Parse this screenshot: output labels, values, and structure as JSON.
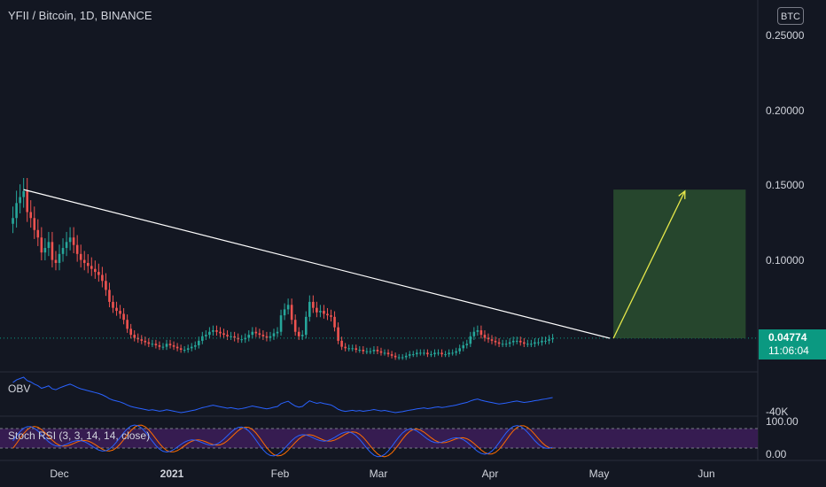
{
  "header": {
    "title": "YFII / Bitcoin, 1D, BINANCE",
    "currency_badge": "BTC"
  },
  "price_axis": {
    "ticks": [
      "0.25000",
      "0.20000",
      "0.15000",
      "0.10000"
    ]
  },
  "current": {
    "price": "0.04774",
    "countdown": "11:06:04"
  },
  "time_axis": {
    "ticks": [
      "Dec",
      "2021",
      "Feb",
      "Mar",
      "Apr",
      "May",
      "Jun"
    ]
  },
  "obv": {
    "label": "OBV",
    "axis_value": "-40K"
  },
  "stoch": {
    "label": "Stoch RSI (3, 3, 14, 14, close)",
    "axis_top": "100.00",
    "axis_bottom": "0.00"
  },
  "colors": {
    "up": "#26a69a",
    "down": "#ef5350",
    "bg": "#131722",
    "trendline": "#ffffff",
    "projection_box": "#2a4f2f",
    "projection_arrow": "#e6e84b",
    "obv_line": "#2962ff",
    "stoch_k": "#2962ff",
    "stoch_d": "#ff6d00",
    "stoch_band": "#3b1d57"
  },
  "chart_data": {
    "type": "candlestick",
    "title": "YFII / Bitcoin, 1D, BINANCE",
    "y_scale": "linear",
    "ylim": [
      0.022,
      0.265
    ],
    "x_range": [
      "2020-11-18",
      "2021-06-11"
    ],
    "close_series": [
      0.128,
      0.138,
      0.142,
      0.146,
      0.132,
      0.128,
      0.12,
      0.115,
      0.105,
      0.108,
      0.112,
      0.1,
      0.098,
      0.104,
      0.108,
      0.112,
      0.115,
      0.11,
      0.104,
      0.1,
      0.098,
      0.096,
      0.094,
      0.092,
      0.09,
      0.086,
      0.08,
      0.072,
      0.068,
      0.066,
      0.064,
      0.06,
      0.054,
      0.05,
      0.048,
      0.047,
      0.046,
      0.045,
      0.044,
      0.044,
      0.043,
      0.042,
      0.042,
      0.044,
      0.043,
      0.042,
      0.041,
      0.04,
      0.04,
      0.041,
      0.042,
      0.043,
      0.046,
      0.049,
      0.05,
      0.052,
      0.053,
      0.052,
      0.051,
      0.05,
      0.049,
      0.049,
      0.048,
      0.047,
      0.047,
      0.048,
      0.05,
      0.052,
      0.051,
      0.05,
      0.049,
      0.048,
      0.049,
      0.051,
      0.052,
      0.063,
      0.067,
      0.07,
      0.06,
      0.052,
      0.049,
      0.05,
      0.062,
      0.072,
      0.068,
      0.065,
      0.066,
      0.064,
      0.063,
      0.062,
      0.055,
      0.046,
      0.042,
      0.041,
      0.041,
      0.041,
      0.04,
      0.04,
      0.039,
      0.039,
      0.039,
      0.04,
      0.039,
      0.038,
      0.038,
      0.037,
      0.036,
      0.035,
      0.035,
      0.035,
      0.036,
      0.037,
      0.037,
      0.038,
      0.038,
      0.038,
      0.037,
      0.037,
      0.038,
      0.038,
      0.037,
      0.037,
      0.038,
      0.038,
      0.039,
      0.041,
      0.043,
      0.044,
      0.049,
      0.052,
      0.053,
      0.05,
      0.048,
      0.047,
      0.046,
      0.045,
      0.044,
      0.044,
      0.044,
      0.045,
      0.046,
      0.046,
      0.045,
      0.044,
      0.044,
      0.044,
      0.045,
      0.045,
      0.046,
      0.046,
      0.047,
      0.0477
    ],
    "trendline": {
      "from": [
        "2020-11-21",
        0.147
      ],
      "to": [
        "2021-05-04",
        0.0477
      ]
    },
    "projection": {
      "date_start": "2021-05-05",
      "date_end": "2021-06-11",
      "price_low": 0.0477,
      "price_high": 0.147,
      "arrow_from": [
        "2021-05-05",
        0.0477
      ],
      "arrow_to": [
        "2021-05-25",
        0.146
      ]
    },
    "current_price": 0.04774
  }
}
